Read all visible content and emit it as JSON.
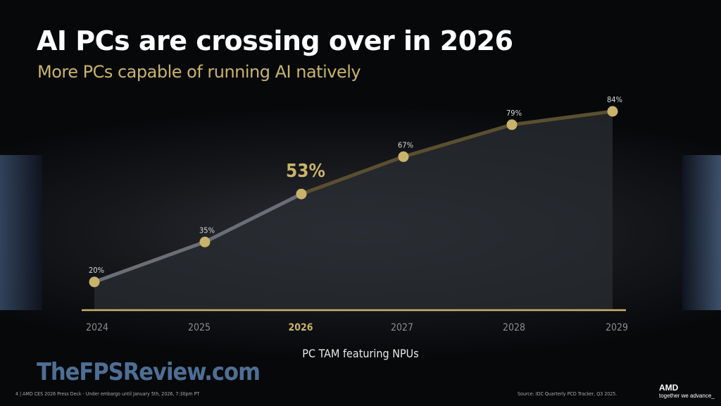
{
  "title": "AI PCs are crossing over in 2026",
  "subtitle": "More PCs capable of running AI natively",
  "chart_data": {
    "type": "line",
    "categories": [
      "2024",
      "2025",
      "2026",
      "2027",
      "2028",
      "2029"
    ],
    "values": [
      20,
      35,
      53,
      67,
      79,
      84
    ],
    "data_labels": [
      "20%",
      "35%",
      "53%",
      "67%",
      "79%",
      "84%"
    ],
    "highlight_index": 2,
    "xlabel": "PC TAM featuring NPUs",
    "ylabel": "",
    "grid": false,
    "colors": {
      "accent": "#c9b36b",
      "line_past": "#6b6e75",
      "line_future": "#5a4f30",
      "area": "#2a2d33"
    }
  },
  "watermark": "TheFPSReview.com",
  "footer": {
    "left": "4  |  AMD CES 2026 Press Deck - Under embargo until January 5th, 2026, 7:30pm PT",
    "source": "Source: IDC Quarterly PCD Tracker, Q3 2025.",
    "logo": "AMD",
    "tagline": "together we advance_"
  }
}
